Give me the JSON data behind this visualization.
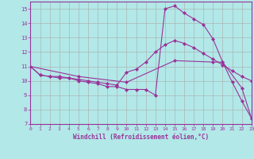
{
  "xlabel": "Windchill (Refroidissement éolien,°C)",
  "background_color": "#b2e8e8",
  "grid_color": "#aaaaaa",
  "line_color": "#993399",
  "marker": "D",
  "marker_size": 2,
  "xlim": [
    0,
    23
  ],
  "ylim": [
    7,
    15.5
  ],
  "xticks": [
    0,
    1,
    2,
    3,
    4,
    5,
    6,
    7,
    8,
    9,
    10,
    11,
    12,
    13,
    14,
    15,
    16,
    17,
    18,
    19,
    20,
    21,
    22,
    23
  ],
  "yticks": [
    7,
    8,
    9,
    10,
    11,
    12,
    13,
    14,
    15
  ],
  "series1": [
    [
      0,
      11.0
    ],
    [
      1,
      10.4
    ],
    [
      2,
      10.3
    ],
    [
      3,
      10.3
    ],
    [
      4,
      10.2
    ],
    [
      5,
      10.0
    ],
    [
      6,
      9.9
    ],
    [
      7,
      9.8
    ],
    [
      8,
      9.6
    ],
    [
      9,
      9.6
    ],
    [
      10,
      9.4
    ],
    [
      11,
      9.4
    ],
    [
      12,
      9.4
    ],
    [
      13,
      9.0
    ],
    [
      14,
      15.0
    ],
    [
      15,
      15.2
    ],
    [
      16,
      14.7
    ],
    [
      17,
      14.3
    ],
    [
      18,
      13.9
    ],
    [
      19,
      12.9
    ],
    [
      20,
      11.3
    ],
    [
      21,
      9.9
    ],
    [
      22,
      8.6
    ],
    [
      23,
      7.4
    ]
  ],
  "series2": [
    [
      0,
      11.0
    ],
    [
      1,
      10.4
    ],
    [
      2,
      10.3
    ],
    [
      3,
      10.2
    ],
    [
      4,
      10.2
    ],
    [
      5,
      10.1
    ],
    [
      6,
      10.0
    ],
    [
      7,
      9.9
    ],
    [
      8,
      9.8
    ],
    [
      9,
      9.7
    ],
    [
      10,
      10.6
    ],
    [
      11,
      10.8
    ],
    [
      12,
      11.3
    ],
    [
      13,
      12.0
    ],
    [
      14,
      12.5
    ],
    [
      15,
      12.8
    ],
    [
      16,
      12.6
    ],
    [
      17,
      12.3
    ],
    [
      18,
      11.9
    ],
    [
      19,
      11.5
    ],
    [
      20,
      11.1
    ],
    [
      21,
      10.7
    ],
    [
      22,
      10.3
    ],
    [
      23,
      10.0
    ]
  ],
  "series3": [
    [
      0,
      11.0
    ],
    [
      5,
      10.3
    ],
    [
      10,
      9.9
    ],
    [
      15,
      11.4
    ],
    [
      19,
      11.3
    ],
    [
      20,
      11.3
    ],
    [
      22,
      9.5
    ],
    [
      23,
      7.4
    ]
  ]
}
